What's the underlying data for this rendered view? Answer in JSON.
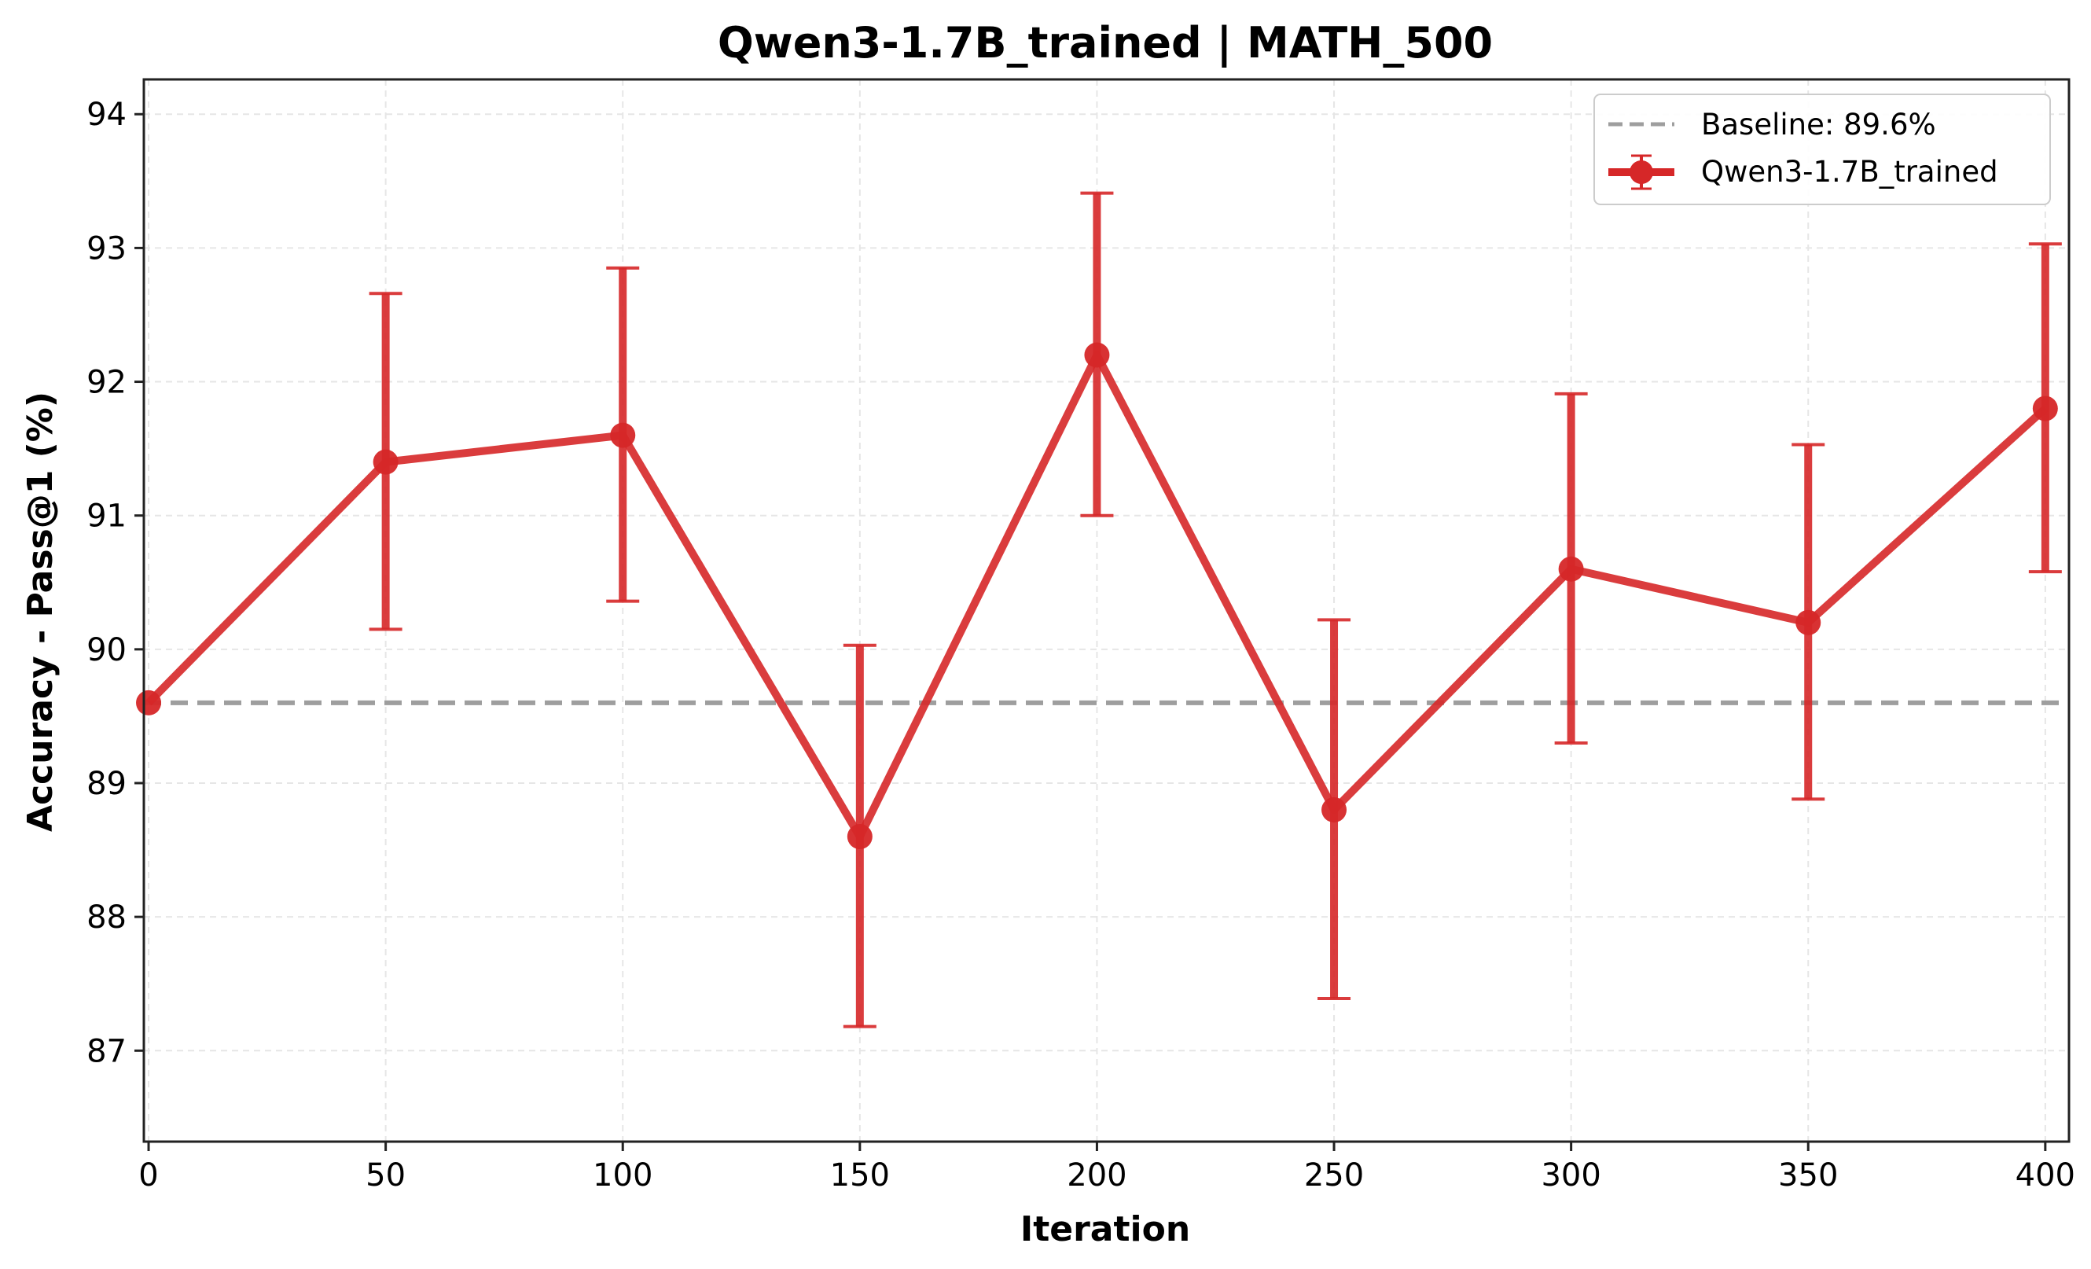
{
  "chart_data": {
    "type": "line",
    "title": "Qwen3-1.7B_trained | MATH_500",
    "xlabel": "Iteration",
    "ylabel": "Accuracy - Pass@1 (%)",
    "xlim": [
      -1,
      405
    ],
    "ylim": [
      86.32,
      94.26
    ],
    "xticks": [
      0,
      50,
      100,
      150,
      200,
      250,
      300,
      350,
      400
    ],
    "yticks": [
      87,
      88,
      89,
      90,
      91,
      92,
      93,
      94
    ],
    "grid": true,
    "legend_position": "upper right",
    "baseline": {
      "label": "Baseline: 89.6%",
      "value": 89.6,
      "color": "#9e9e9e",
      "style": "dashed"
    },
    "series": [
      {
        "name": "Qwen3-1.7B_trained",
        "color": "#d62728",
        "x": [
          0,
          50,
          100,
          150,
          200,
          250,
          300,
          350,
          400
        ],
        "y": [
          89.6,
          91.4,
          91.6,
          88.6,
          92.2,
          88.8,
          90.6,
          90.2,
          91.8
        ],
        "err_low": [
          89.6,
          90.15,
          90.36,
          87.18,
          91.0,
          87.39,
          89.3,
          88.88,
          90.58
        ],
        "err_high": [
          89.6,
          92.66,
          92.85,
          90.03,
          93.41,
          90.22,
          91.91,
          91.53,
          93.03
        ]
      }
    ]
  }
}
